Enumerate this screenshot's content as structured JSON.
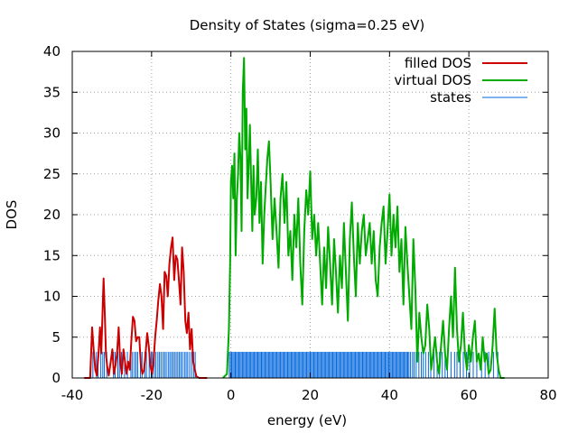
{
  "chart_data": {
    "type": "line",
    "title": "Density of States (sigma=0.25 eV)",
    "xlabel": "energy (eV)",
    "ylabel": "DOS",
    "xlim": [
      -40,
      80
    ],
    "ylim": [
      0,
      40
    ],
    "xticks": [
      -40,
      -20,
      0,
      20,
      40,
      60,
      80
    ],
    "yticks": [
      0,
      5,
      10,
      15,
      20,
      25,
      30,
      35,
      40
    ],
    "grid": true,
    "legend_position": "top-right",
    "series": [
      {
        "name": "filled DOS",
        "color": "#cc0000",
        "x": [
          -37,
          -35.5,
          -35,
          -34.6,
          -34.2,
          -33.8,
          -33.4,
          -33,
          -32.7,
          -32.4,
          -32.1,
          -31.8,
          -31.5,
          -31.2,
          -30.8,
          -30.3,
          -29.9,
          -29.5,
          -29.1,
          -28.7,
          -28.3,
          -27.9,
          -27.5,
          -27.1,
          -26.7,
          -26.3,
          -25.9,
          -25.5,
          -25.1,
          -24.7,
          -24.3,
          -23.9,
          -23.5,
          -23.1,
          -22.7,
          -22.3,
          -21.9,
          -21.5,
          -21.1,
          -20.7,
          -20.3,
          -19.9,
          -19.5,
          -19.1,
          -18.7,
          -18.3,
          -17.9,
          -17.5,
          -17.1,
          -16.7,
          -16.3,
          -15.9,
          -15.5,
          -15.1,
          -14.7,
          -14.3,
          -13.9,
          -13.5,
          -13.1,
          -12.7,
          -12.3,
          -11.9,
          -11.5,
          -11.1,
          -10.7,
          -10.3,
          -9.9,
          -9.5,
          -9.1,
          -8.7,
          -8,
          -7.5,
          -6
        ],
        "y": [
          0,
          0,
          6.2,
          3.5,
          1,
          0.3,
          2.8,
          6.2,
          3,
          7.5,
          12.2,
          8,
          3,
          1.5,
          0.3,
          2,
          3.5,
          0.5,
          1.5,
          3,
          6.2,
          2,
          0.5,
          3.5,
          2,
          0.5,
          2,
          1,
          4.5,
          7.5,
          7,
          4.5,
          5,
          5,
          1.5,
          0.5,
          1,
          3,
          5.5,
          3.8,
          1.5,
          0.5,
          2,
          5,
          7,
          9.5,
          11.5,
          10,
          6,
          13,
          12.5,
          10,
          14,
          16,
          17.2,
          12,
          15,
          14.5,
          12,
          9,
          16,
          13,
          7,
          5.5,
          8,
          3.5,
          6,
          2,
          1,
          0.2,
          0,
          0,
          0
        ]
      },
      {
        "name": "virtual DOS",
        "color": "#00aa00",
        "x": [
          -2,
          -1,
          -0.5,
          -0.2,
          0,
          0.3,
          0.6,
          0.9,
          1.2,
          1.5,
          1.8,
          2.1,
          2.4,
          2.7,
          3,
          3.3,
          3.6,
          3.9,
          4.2,
          4.5,
          4.8,
          5.1,
          5.4,
          5.7,
          6,
          6.4,
          6.8,
          7.2,
          7.6,
          8,
          8.4,
          8.8,
          9.2,
          9.6,
          10,
          10.5,
          11,
          11.5,
          12,
          12.5,
          13,
          13.5,
          14,
          14.5,
          15,
          15.5,
          16,
          16.5,
          17,
          17.5,
          18,
          18.5,
          19,
          19.5,
          20,
          20.5,
          21,
          21.5,
          22,
          22.5,
          23,
          23.5,
          24,
          24.5,
          25,
          25.5,
          26,
          26.5,
          27,
          27.5,
          28,
          28.5,
          29,
          29.5,
          30,
          30.5,
          31,
          31.5,
          32,
          32.5,
          33,
          33.5,
          34,
          34.5,
          35,
          35.5,
          36,
          36.5,
          37,
          37.5,
          38,
          38.5,
          39,
          39.5,
          40,
          40.5,
          41,
          41.5,
          42,
          42.5,
          43,
          43.5,
          44,
          44.5,
          45,
          45.5,
          46,
          46.5,
          47,
          47.5,
          48,
          48.5,
          49,
          49.5,
          50,
          50.5,
          51,
          51.5,
          52,
          52.5,
          53,
          53.5,
          54,
          54.5,
          55,
          55.5,
          56,
          56.5,
          57,
          57.5,
          58,
          58.5,
          59,
          59.5,
          60,
          60.5,
          61,
          61.5,
          62,
          62.5,
          63,
          63.5,
          64,
          64.5,
          65,
          65.5,
          66,
          66.5,
          67,
          67.5,
          68,
          69
        ],
        "y": [
          0,
          0.5,
          6,
          14,
          24,
          26,
          22,
          27.5,
          15,
          22,
          25,
          30,
          27,
          18,
          35,
          39.2,
          28,
          33,
          22,
          26,
          31,
          24,
          18,
          26,
          20,
          22,
          28,
          19,
          24,
          14,
          20,
          23.5,
          27,
          29,
          24,
          17,
          22,
          18,
          13.5,
          22,
          25,
          19,
          24,
          15,
          18,
          12,
          20,
          16,
          22,
          14,
          9,
          18,
          23,
          20,
          25.3,
          17,
          20,
          15,
          19,
          14,
          9,
          16,
          11,
          18.5,
          14,
          9,
          17,
          13,
          8,
          15,
          11,
          19,
          13,
          7,
          17,
          21.5,
          15,
          10,
          19,
          14,
          18,
          20,
          15,
          17,
          19,
          14,
          18,
          12,
          10,
          16,
          19,
          21,
          14,
          18,
          22.5,
          15,
          20,
          16,
          21,
          13,
          17,
          9,
          18.5,
          14,
          10,
          6,
          17,
          11,
          2,
          8,
          5,
          3,
          4,
          9,
          6,
          1,
          3,
          5,
          2,
          0.5,
          4,
          7,
          3,
          1,
          6,
          10,
          5,
          13.5,
          6,
          2,
          4,
          8,
          3,
          1,
          4,
          2,
          5,
          7,
          2,
          3,
          1,
          5,
          2,
          3,
          0.5,
          1,
          4,
          8.5,
          3,
          1,
          0,
          0
        ]
      }
    ],
    "states": {
      "name": "states",
      "color": "#0066dd",
      "height": 3.2,
      "x": [
        -35.3,
        -34.8,
        -33.9,
        -33.5,
        -32.8,
        -32.3,
        -31.9,
        -31.3,
        -29.6,
        -29.2,
        -28.5,
        -28.1,
        -27.6,
        -26.8,
        -26.1,
        -25.2,
        -24.8,
        -24.3,
        -23.9,
        -23.5,
        -22.8,
        -22.4,
        -21.7,
        -21.3,
        -20.6,
        -20.1,
        -19.8,
        -19.3,
        -18.9,
        -18.4,
        -18,
        -17.6,
        -17.1,
        -16.7,
        -16.3,
        -15.8,
        -15.4,
        -15,
        -14.6,
        -14.2,
        -13.8,
        -13.4,
        -13,
        -12.6,
        -12.2,
        -11.7,
        -11.3,
        -10.9,
        -10.4,
        -9.9,
        -9.4,
        -9,
        -0.4,
        -0.1,
        0.2,
        0.5,
        0.8,
        1.1,
        1.4,
        1.7,
        2,
        2.3,
        2.6,
        2.9,
        3.2,
        3.5,
        3.8,
        4.1,
        4.4,
        4.7,
        5,
        5.3,
        5.6,
        5.9,
        6.2,
        6.5,
        6.8,
        7.1,
        7.4,
        7.7,
        8,
        8.3,
        8.6,
        8.9,
        9.2,
        9.5,
        9.8,
        10.1,
        10.4,
        10.7,
        11,
        11.3,
        11.6,
        11.9,
        12.2,
        12.5,
        12.8,
        13.1,
        13.4,
        13.7,
        14,
        14.3,
        14.6,
        14.9,
        15.2,
        15.5,
        15.8,
        16.1,
        16.4,
        16.7,
        17,
        17.3,
        17.6,
        17.9,
        18.2,
        18.5,
        18.8,
        19.1,
        19.4,
        19.7,
        20,
        20.3,
        20.6,
        20.9,
        21.2,
        21.5,
        21.8,
        22.1,
        22.4,
        22.7,
        23,
        23.3,
        23.6,
        23.9,
        24.2,
        24.5,
        24.8,
        25.1,
        25.4,
        25.7,
        26,
        26.3,
        26.6,
        26.9,
        27.2,
        27.5,
        27.8,
        28.1,
        28.4,
        28.7,
        29,
        29.3,
        29.6,
        29.9,
        30.2,
        30.5,
        30.8,
        31.1,
        31.4,
        31.7,
        32,
        32.3,
        32.6,
        32.9,
        33.2,
        33.5,
        33.8,
        34.1,
        34.4,
        34.7,
        35,
        35.3,
        35.6,
        35.9,
        36.2,
        36.5,
        36.8,
        37.1,
        37.4,
        37.7,
        38,
        38.3,
        38.6,
        38.9,
        39.2,
        39.5,
        39.8,
        40.1,
        40.4,
        40.7,
        41,
        41.3,
        41.6,
        41.9,
        42.2,
        42.5,
        42.8,
        43.1,
        43.4,
        43.7,
        44,
        44.3,
        44.6,
        44.9,
        45.3,
        45.8,
        46.2,
        46.7,
        47.4,
        48,
        48.5,
        49.1,
        49.8,
        50.4,
        51.2,
        52,
        52.6,
        53.3,
        54,
        54.6,
        55.5,
        56.4,
        57,
        57.8,
        58.6,
        59.4,
        60.2,
        61.1,
        62,
        63.2,
        64.1,
        65,
        66.2,
        67.3
      ]
    }
  }
}
